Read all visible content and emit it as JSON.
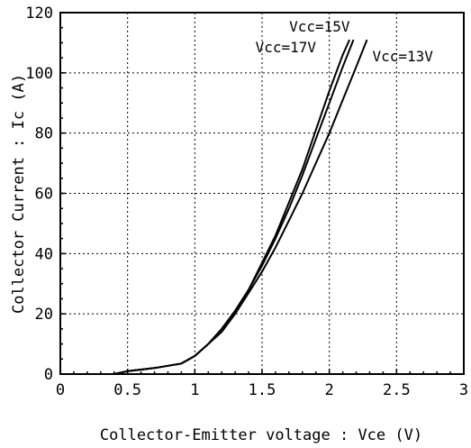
{
  "chart_data": {
    "type": "line",
    "title": "",
    "xlabel": "Collector-Emitter voltage : Vce  (V)",
    "ylabel": "Collector Current : Ic (A)",
    "xlim": [
      0,
      3
    ],
    "ylim": [
      0,
      120
    ],
    "x_ticks": [
      0,
      0.5,
      1,
      1.5,
      2,
      2.5,
      3
    ],
    "x_tick_labels": [
      "0",
      "0.5",
      "1",
      "1.5",
      "2",
      "2.5",
      "3"
    ],
    "y_ticks": [
      0,
      20,
      40,
      60,
      80,
      100,
      120
    ],
    "y_tick_labels": [
      "0",
      "20",
      "40",
      "60",
      "80",
      "100",
      "120"
    ],
    "grid": true,
    "legend": "inline labels",
    "series": [
      {
        "name": "Vcc=15V",
        "color": "#000000",
        "points": [
          [
            0.4,
            0
          ],
          [
            0.5,
            1
          ],
          [
            0.7,
            2
          ],
          [
            0.9,
            3.5
          ],
          [
            1.0,
            6
          ],
          [
            1.1,
            10
          ],
          [
            1.2,
            15
          ],
          [
            1.3,
            21
          ],
          [
            1.4,
            28
          ],
          [
            1.5,
            36
          ],
          [
            1.6,
            45
          ],
          [
            1.7,
            55
          ],
          [
            1.8,
            66
          ],
          [
            1.9,
            78
          ],
          [
            2.0,
            90
          ],
          [
            2.1,
            102
          ],
          [
            2.18,
            111
          ]
        ]
      },
      {
        "name": "Vcc=17V",
        "color": "#000000",
        "points": [
          [
            0.4,
            0
          ],
          [
            0.5,
            1
          ],
          [
            0.7,
            2
          ],
          [
            0.9,
            3.5
          ],
          [
            1.0,
            6
          ],
          [
            1.1,
            10
          ],
          [
            1.2,
            15
          ],
          [
            1.3,
            21
          ],
          [
            1.4,
            28
          ],
          [
            1.5,
            37
          ],
          [
            1.6,
            46
          ],
          [
            1.7,
            57
          ],
          [
            1.8,
            68
          ],
          [
            1.9,
            81
          ],
          [
            2.0,
            94
          ],
          [
            2.1,
            106
          ],
          [
            2.15,
            111
          ]
        ]
      },
      {
        "name": "Vcc=13V",
        "color": "#000000",
        "points": [
          [
            0.4,
            0
          ],
          [
            0.5,
            1
          ],
          [
            0.7,
            2
          ],
          [
            0.9,
            3.5
          ],
          [
            1.0,
            6
          ],
          [
            1.1,
            10
          ],
          [
            1.2,
            14
          ],
          [
            1.3,
            20
          ],
          [
            1.4,
            27
          ],
          [
            1.5,
            34
          ],
          [
            1.6,
            42
          ],
          [
            1.7,
            51
          ],
          [
            1.8,
            60
          ],
          [
            1.9,
            70
          ],
          [
            2.0,
            80
          ],
          [
            2.1,
            91
          ],
          [
            2.2,
            102
          ],
          [
            2.28,
            111
          ]
        ]
      }
    ],
    "annotations": [
      {
        "text": "Vcc=15V",
        "series": "Vcc=15V"
      },
      {
        "text": "Vcc=17V",
        "series": "Vcc=17V"
      },
      {
        "text": "Vcc=13V",
        "series": "Vcc=13V"
      }
    ]
  }
}
